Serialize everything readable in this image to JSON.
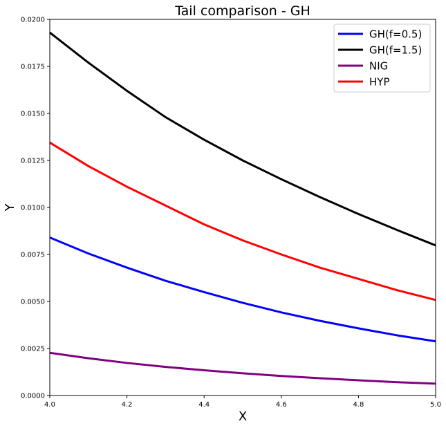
{
  "chart_data": {
    "type": "line",
    "title": "Tail comparison - GH",
    "xlabel": "X",
    "ylabel": "Y",
    "xlim": [
      4.0,
      5.0
    ],
    "ylim": [
      0.0,
      0.02
    ],
    "x_ticks": [
      "4.0",
      "4.2",
      "4.4",
      "4.6",
      "4.8",
      "5.0"
    ],
    "y_ticks": [
      "0.0000",
      "0.0025",
      "0.0050",
      "0.0075",
      "0.0100",
      "0.0125",
      "0.0150",
      "0.0175",
      "0.0200"
    ],
    "grid": false,
    "legend_position": "top-right",
    "x": [
      4.0,
      4.1,
      4.2,
      4.3,
      4.4,
      4.5,
      4.6,
      4.7,
      4.8,
      4.9,
      5.0
    ],
    "series": [
      {
        "name": "GH(f=0.5)",
        "color": "#0000ff",
        "values": [
          0.0084,
          0.00755,
          0.0068,
          0.0061,
          0.0055,
          0.00493,
          0.00442,
          0.00397,
          0.00357,
          0.0032,
          0.00288
        ]
      },
      {
        "name": "GH(f=1.5)",
        "color": "#000000",
        "values": [
          0.0193,
          0.0177,
          0.0162,
          0.0148,
          0.0136,
          0.0125,
          0.0115,
          0.01055,
          0.00965,
          0.0088,
          0.00798
        ]
      },
      {
        "name": "NIG",
        "color": "#800080",
        "values": [
          0.00227,
          0.00198,
          0.00173,
          0.00152,
          0.00134,
          0.00118,
          0.00104,
          0.00092,
          0.00081,
          0.00071,
          0.00063
        ]
      },
      {
        "name": "HYP",
        "color": "#ff0000",
        "values": [
          0.01345,
          0.0122,
          0.0111,
          0.0101,
          0.0091,
          0.00825,
          0.0075,
          0.0068,
          0.0062,
          0.0056,
          0.00508
        ]
      }
    ]
  }
}
